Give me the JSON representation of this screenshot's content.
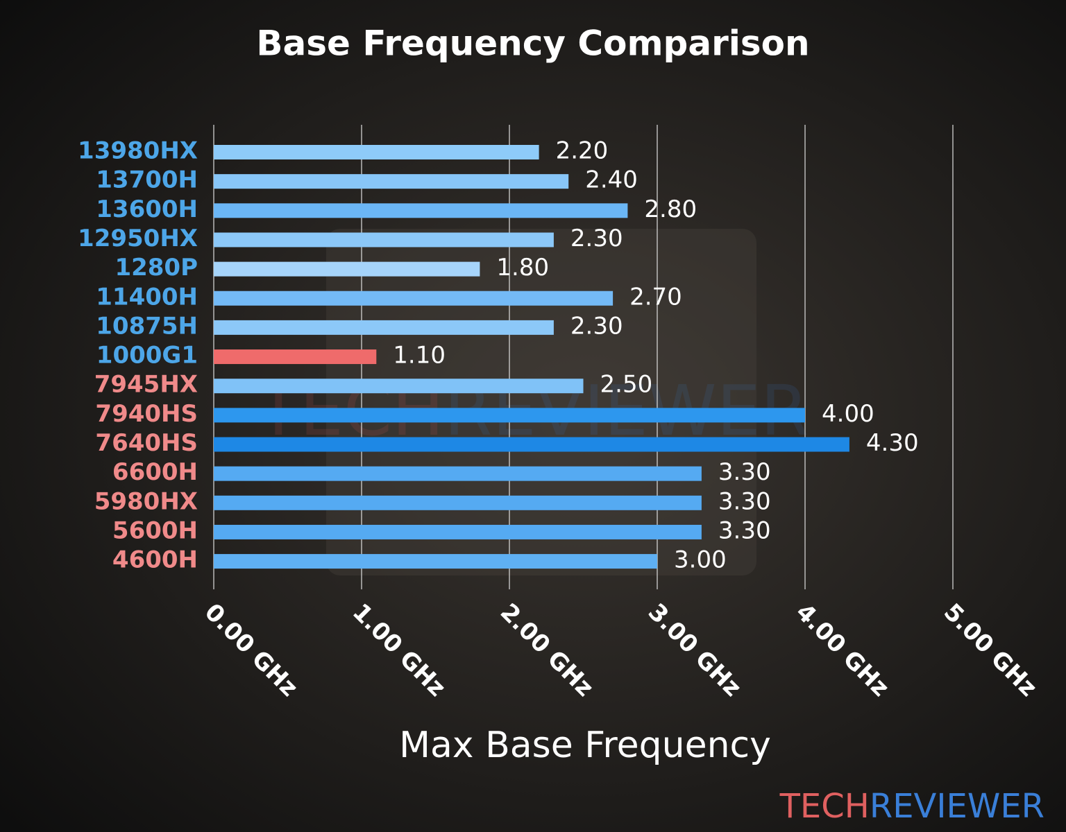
{
  "chart_data": {
    "type": "bar",
    "orientation": "horizontal",
    "title": "Base Frequency Comparison",
    "x_label": "Max Base Frequency",
    "categories": [
      "13980HX",
      "13700H",
      "13600H",
      "12950HX",
      "1280P",
      "11400H",
      "10875H",
      "1000G1",
      "7945HX",
      "7940HS",
      "7640HS",
      "6600H",
      "5980HX",
      "5600H",
      "4600H"
    ],
    "category_colors": [
      "#4da6e8",
      "#4da6e8",
      "#4da6e8",
      "#4da6e8",
      "#4da6e8",
      "#4da6e8",
      "#4da6e8",
      "#4da6e8",
      "#f08a8a",
      "#f08a8a",
      "#f08a8a",
      "#f08a8a",
      "#f08a8a",
      "#f08a8a",
      "#f08a8a"
    ],
    "values": [
      2.2,
      2.4,
      2.8,
      2.3,
      1.8,
      2.7,
      2.3,
      1.1,
      2.5,
      4.0,
      4.3,
      3.3,
      3.3,
      3.3,
      3.0
    ],
    "value_labels": [
      "2.20",
      "2.40",
      "2.80",
      "2.30",
      "1.80",
      "2.70",
      "2.30",
      "1.10",
      "2.50",
      "4.00",
      "4.30",
      "3.30",
      "3.30",
      "3.30",
      "3.00"
    ],
    "colors": [
      "#8ecbf9",
      "#88c6f8",
      "#6bb6f5",
      "#8cc8f8",
      "#a6d4fa",
      "#74baf6",
      "#8cc8f8",
      "#ef6b6b",
      "#80c2f7",
      "#2d97ee",
      "#1e88e5",
      "#55aaf2",
      "#55aaf2",
      "#55aaf2",
      "#5fb0f3"
    ],
    "xlim": [
      0,
      5
    ],
    "xticks": [
      {
        "value": 0,
        "label": "0.00 GHz"
      },
      {
        "value": 1,
        "label": "1.00 GHz"
      },
      {
        "value": 2,
        "label": "2.00 GHz"
      },
      {
        "value": 3,
        "label": "3.00 GHz"
      },
      {
        "value": 4,
        "label": "4.00 GHz"
      },
      {
        "value": 5,
        "label": "5.00 GHz"
      }
    ],
    "grid": true,
    "logo": [
      "TECH",
      "REVIEWER"
    ]
  }
}
